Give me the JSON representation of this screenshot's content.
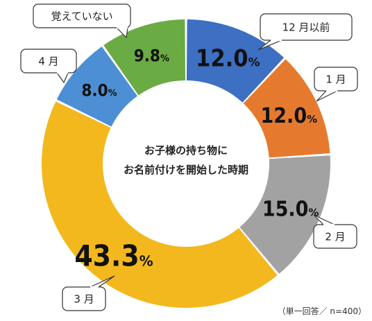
{
  "chart_data": {
    "type": "pie",
    "title": "お子様の持ち物に\nお名前付けを開始した時期",
    "note": "（単一回答／ n=400）",
    "unit": "%",
    "slices": [
      {
        "label": "12 月以前",
        "value": 12.0,
        "display": "12.0",
        "color": "#3d6fc2"
      },
      {
        "label": "1 月",
        "value": 12.0,
        "display": "12.0",
        "color": "#e57a2f"
      },
      {
        "label": "2 月",
        "value": 15.0,
        "display": "15.0",
        "color": "#a2a2a2"
      },
      {
        "label": "3 月",
        "value": 43.3,
        "display": "43.3",
        "color": "#f2b81d"
      },
      {
        "label": "4 月",
        "value": 8.0,
        "display": "8.0",
        "color": "#4d8fd4"
      },
      {
        "label": "覚えていない",
        "value": 9.8,
        "display": "9.8",
        "color": "#6aab44"
      }
    ]
  }
}
